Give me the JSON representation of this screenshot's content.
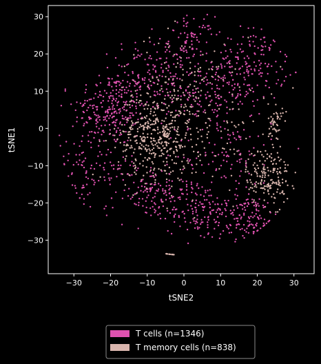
{
  "chart_data": {
    "type": "scatter",
    "xlabel": "tSNE2",
    "ylabel": "tSNE1",
    "xlim": [
      -37,
      35.5
    ],
    "ylim": [
      -39,
      33
    ],
    "xticks": [
      -30,
      -20,
      -10,
      0,
      10,
      20,
      30
    ],
    "yticks": [
      -30,
      -20,
      -10,
      0,
      10,
      20,
      30
    ],
    "xtick_labels": [
      "−30",
      "−20",
      "−10",
      "0",
      "10",
      "20",
      "30"
    ],
    "ytick_labels": [
      "−30",
      "−20",
      "−10",
      "0",
      "10",
      "20",
      "30"
    ],
    "grid": false,
    "legend_position": "below",
    "series": [
      {
        "name": "T cells (n=1346)",
        "color": "#e052b0",
        "clusters": [
          {
            "cx": -20,
            "cy": 5,
            "sx": 5,
            "sy": 5,
            "n": 240
          },
          {
            "cx": -8,
            "cy": 14,
            "sx": 6,
            "sy": 5,
            "n": 170
          },
          {
            "cx": 2,
            "cy": 24,
            "sx": 3,
            "sy": 3,
            "n": 70
          },
          {
            "cx": 18,
            "cy": 17,
            "sx": 5,
            "sy": 5,
            "n": 170
          },
          {
            "cx": 7,
            "cy": 8,
            "sx": 6,
            "sy": 5,
            "n": 120
          },
          {
            "cx": -9,
            "cy": -17,
            "sx": 5,
            "sy": 4,
            "n": 130
          },
          {
            "cx": 4,
            "cy": -22,
            "sx": 4,
            "sy": 4,
            "n": 120
          },
          {
            "cx": 17,
            "cy": -24,
            "sx": 5,
            "sy": 3,
            "n": 130
          },
          {
            "cx": 12,
            "cy": -8,
            "sx": 6,
            "sy": 6,
            "n": 100
          },
          {
            "cx": -25,
            "cy": -10,
            "sx": 5,
            "sy": 5,
            "n": 96
          }
        ]
      },
      {
        "name": "T memory cells (n=838)",
        "color": "#d9b5ad",
        "clusters": [
          {
            "cx": -8,
            "cy": -2,
            "sx": 5,
            "sy": 6,
            "n": 380
          },
          {
            "cx": 23,
            "cy": -13,
            "sx": 3,
            "sy": 4,
            "n": 170
          },
          {
            "cx": 25,
            "cy": 1,
            "sx": 1,
            "sy": 3,
            "n": 50
          },
          {
            "cx": -4,
            "cy": -35,
            "sx": 0.7,
            "sy": 0.5,
            "n": 12
          },
          {
            "cx": 2,
            "cy": 5,
            "sx": 10,
            "sy": 10,
            "n": 226
          }
        ]
      }
    ]
  }
}
